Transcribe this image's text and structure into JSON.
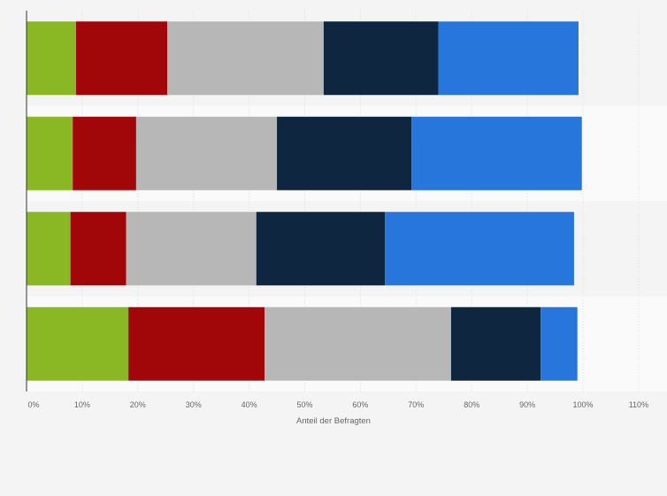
{
  "chart_data": {
    "type": "bar",
    "orientation": "horizontal",
    "stacked": true,
    "xlabel": "Anteil der Befragten",
    "ylabel": "",
    "xlim": [
      0,
      110
    ],
    "x_ticks": [
      "0%",
      "10%",
      "20%",
      "30%",
      "40%",
      "50%",
      "60%",
      "70%",
      "80%",
      "90%",
      "100%",
      "110%"
    ],
    "grid": true,
    "legend": "none",
    "row_count": 4,
    "series": [
      {
        "color": "#8ab825",
        "values": [
          8.9,
          8.3,
          7.9,
          18.3
        ]
      },
      {
        "color": "#a10708",
        "values": [
          16.4,
          11.4,
          10.0,
          24.5
        ]
      },
      {
        "color": "#b7b7b7",
        "values": [
          28.1,
          25.3,
          23.4,
          33.5
        ]
      },
      {
        "color": "#0f2640",
        "values": [
          20.6,
          24.2,
          23.1,
          16.1
        ]
      },
      {
        "color": "#2776dc",
        "values": [
          25.2,
          30.6,
          34.0,
          6.6
        ]
      }
    ]
  }
}
